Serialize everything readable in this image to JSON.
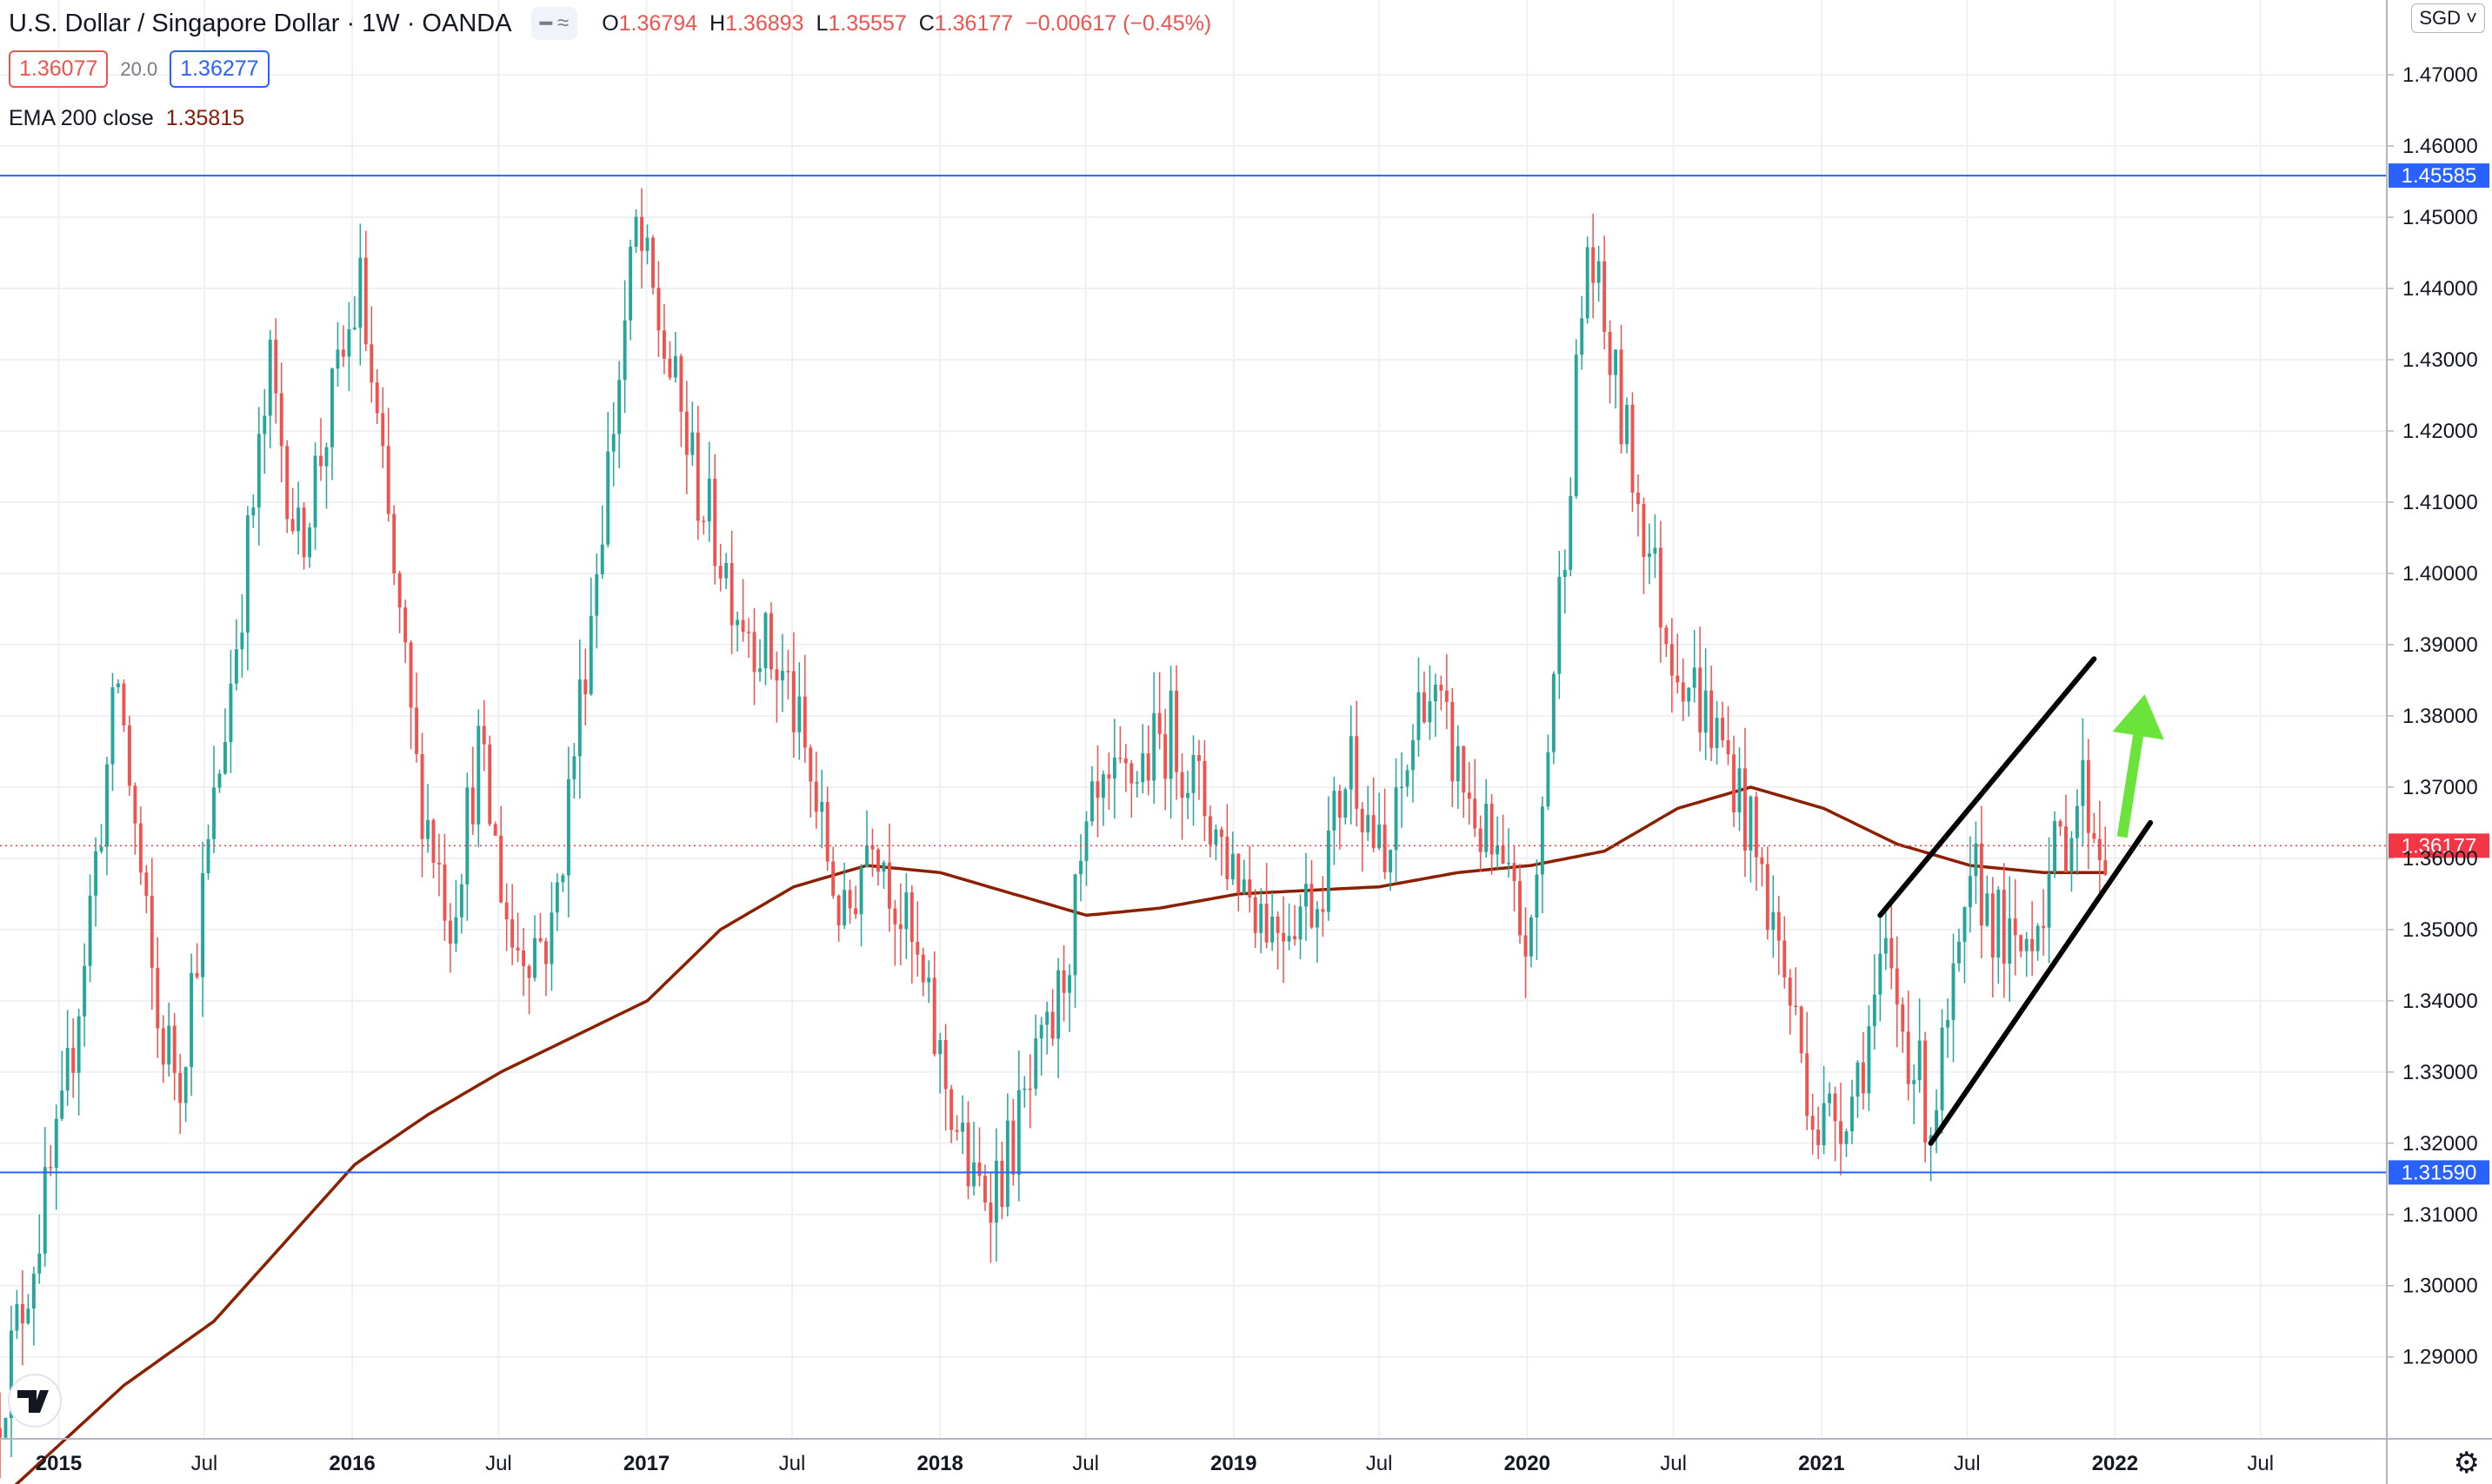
{
  "header": {
    "title": "U.S. Dollar / Singapore Dollar · 1W · OANDA",
    "ohlc": [
      {
        "k": "O",
        "v": "1.36794"
      },
      {
        "k": "H",
        "v": "1.36893"
      },
      {
        "k": "L",
        "v": "1.35557"
      },
      {
        "k": "C",
        "v": "1.36177"
      },
      {
        "k": "",
        "v": "−0.00617 (−0.45%)"
      }
    ],
    "sell_price": "1.36077",
    "spread": "20.0",
    "buy_price": "1.36277",
    "indicator_name": "EMA 200 close",
    "indicator_value": "1.35815",
    "currency": "SGD"
  },
  "colors": {
    "up": "#26a69a",
    "down": "#ef5350",
    "ema": "#8b2000",
    "level_line": "#2962ff",
    "trend_line": "#000000",
    "arrow": "#6ae33a",
    "current_price": "#f23645"
  },
  "chart_data": {
    "type": "candlestick",
    "interval": "1W",
    "x_ticks": [
      "2015",
      "Jul",
      "2016",
      "Jul",
      "2017",
      "Jul",
      "2018",
      "Jul",
      "2019",
      "Jul",
      "2020",
      "Jul",
      "2021",
      "Jul",
      "2022",
      "Jul"
    ],
    "x_tick_dates": [
      "2015-01-01",
      "2015-07-01",
      "2016-01-01",
      "2016-07-01",
      "2017-01-01",
      "2017-07-01",
      "2018-01-01",
      "2018-07-01",
      "2019-01-01",
      "2019-07-01",
      "2020-01-01",
      "2020-07-01",
      "2021-01-01",
      "2021-07-01",
      "2022-01-01",
      "2022-07-01"
    ],
    "x_range": [
      "2014-10-20",
      "2022-12-05"
    ],
    "y_ticks": [
      "1.47000",
      "1.46000",
      "1.45000",
      "1.44000",
      "1.43000",
      "1.42000",
      "1.41000",
      "1.40000",
      "1.39000",
      "1.38000",
      "1.37000",
      "1.36000",
      "1.35000",
      "1.34000",
      "1.33000",
      "1.32000",
      "1.31000",
      "1.30000",
      "1.29000"
    ],
    "ylim": [
      1.2785,
      1.4805
    ],
    "grid": true,
    "price_keypoints": [
      {
        "date": "2014-10-20",
        "price": 1.28
      },
      {
        "date": "2015-01-12",
        "price": 1.322
      },
      {
        "date": "2015-03-23",
        "price": 1.385
      },
      {
        "date": "2015-05-11",
        "price": 1.336
      },
      {
        "date": "2015-06-08",
        "price": 1.33
      },
      {
        "date": "2015-09-28",
        "price": 1.428
      },
      {
        "date": "2015-11-02",
        "price": 1.404
      },
      {
        "date": "2016-01-18",
        "price": 1.44
      },
      {
        "date": "2016-03-28",
        "price": 1.372
      },
      {
        "date": "2016-05-09",
        "price": 1.352
      },
      {
        "date": "2016-06-13",
        "price": 1.375
      },
      {
        "date": "2016-07-25",
        "price": 1.348
      },
      {
        "date": "2016-09-12",
        "price": 1.349
      },
      {
        "date": "2016-12-26",
        "price": 1.448
      },
      {
        "date": "2017-03-13",
        "price": 1.412
      },
      {
        "date": "2017-05-01",
        "price": 1.396
      },
      {
        "date": "2017-07-03",
        "price": 1.384
      },
      {
        "date": "2017-09-11",
        "price": 1.35
      },
      {
        "date": "2017-10-16",
        "price": 1.366
      },
      {
        "date": "2017-12-04",
        "price": 1.347
      },
      {
        "date": "2018-02-19",
        "price": 1.313
      },
      {
        "date": "2018-03-26",
        "price": 1.316
      },
      {
        "date": "2018-05-28",
        "price": 1.336
      },
      {
        "date": "2018-07-16",
        "price": 1.365
      },
      {
        "date": "2018-10-22",
        "price": 1.378
      },
      {
        "date": "2018-12-24",
        "price": 1.362
      },
      {
        "date": "2019-02-25",
        "price": 1.351
      },
      {
        "date": "2019-04-22",
        "price": 1.355
      },
      {
        "date": "2019-06-03",
        "price": 1.375
      },
      {
        "date": "2019-07-15",
        "price": 1.357
      },
      {
        "date": "2019-09-02",
        "price": 1.385
      },
      {
        "date": "2019-11-18",
        "price": 1.362
      },
      {
        "date": "2020-01-13",
        "price": 1.347
      },
      {
        "date": "2020-03-23",
        "price": 1.446
      },
      {
        "date": "2020-05-04",
        "price": 1.422
      },
      {
        "date": "2020-06-29",
        "price": 1.392
      },
      {
        "date": "2020-09-21",
        "price": 1.372
      },
      {
        "date": "2020-11-09",
        "price": 1.351
      },
      {
        "date": "2021-01-04",
        "price": 1.322
      },
      {
        "date": "2021-02-15",
        "price": 1.327
      },
      {
        "date": "2021-03-29",
        "price": 1.345
      },
      {
        "date": "2021-05-24",
        "price": 1.323
      },
      {
        "date": "2021-07-19",
        "price": 1.357
      },
      {
        "date": "2021-09-06",
        "price": 1.345
      },
      {
        "date": "2021-11-29",
        "price": 1.37
      },
      {
        "date": "2021-12-20",
        "price": 1.362
      }
    ],
    "ema_keypoints": [
      {
        "date": "2014-10-20",
        "price": 1.27
      },
      {
        "date": "2015-03-23",
        "price": 1.286
      },
      {
        "date": "2015-07-13",
        "price": 1.295
      },
      {
        "date": "2016-01-04",
        "price": 1.317
      },
      {
        "date": "2016-04-04",
        "price": 1.324
      },
      {
        "date": "2016-07-04",
        "price": 1.33
      },
      {
        "date": "2016-10-03",
        "price": 1.335
      },
      {
        "date": "2017-01-02",
        "price": 1.34
      },
      {
        "date": "2017-04-03",
        "price": 1.35
      },
      {
        "date": "2017-07-03",
        "price": 1.356
      },
      {
        "date": "2017-10-02",
        "price": 1.359
      },
      {
        "date": "2018-01-01",
        "price": 1.358
      },
      {
        "date": "2018-04-02",
        "price": 1.355
      },
      {
        "date": "2018-07-02",
        "price": 1.352
      },
      {
        "date": "2018-10-01",
        "price": 1.353
      },
      {
        "date": "2019-01-07",
        "price": 1.355
      },
      {
        "date": "2019-07-01",
        "price": 1.356
      },
      {
        "date": "2019-10-07",
        "price": 1.358
      },
      {
        "date": "2020-01-06",
        "price": 1.359
      },
      {
        "date": "2020-04-06",
        "price": 1.361
      },
      {
        "date": "2020-07-06",
        "price": 1.367
      },
      {
        "date": "2020-10-05",
        "price": 1.37
      },
      {
        "date": "2021-01-04",
        "price": 1.367
      },
      {
        "date": "2021-04-05",
        "price": 1.362
      },
      {
        "date": "2021-07-05",
        "price": 1.359
      },
      {
        "date": "2021-10-04",
        "price": 1.358
      },
      {
        "date": "2021-12-20",
        "price": 1.358
      }
    ],
    "horizontal_levels": [
      {
        "price": 1.45585,
        "label": "1.45585"
      },
      {
        "price": 1.3159,
        "label": "1.31590"
      }
    ],
    "current_price": {
      "price": 1.36177,
      "label": "1.36177"
    },
    "trend_lines": [
      {
        "from": {
          "date": "2021-03-15",
          "price": 1.352
        },
        "to": {
          "date": "2021-12-06",
          "price": 1.388
        }
      },
      {
        "from": {
          "date": "2021-05-17",
          "price": 1.32
        },
        "to": {
          "date": "2022-02-14",
          "price": 1.365
        }
      }
    ],
    "arrow": {
      "from": {
        "date": "2022-01-10",
        "price": 1.363
      },
      "to": {
        "date": "2022-02-07",
        "price": 1.383
      }
    }
  }
}
